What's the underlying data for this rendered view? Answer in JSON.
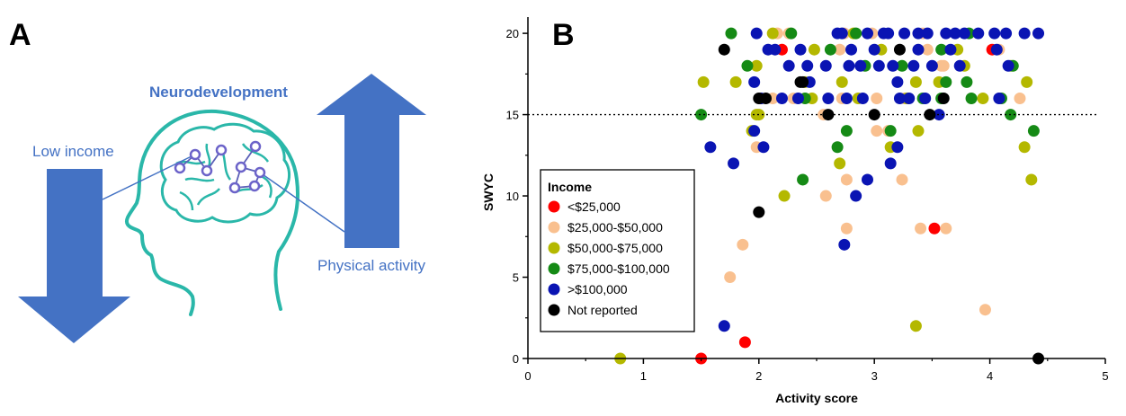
{
  "panel_a": {
    "letter": "A",
    "labels": {
      "neurodevelopment": "Neurodevelopment",
      "low_income": "Low income",
      "physical_activity": "Physical activity"
    },
    "colors": {
      "arrow": "#4472c4",
      "brain": "#2ab7a9",
      "node": "#7b6fd0"
    }
  },
  "panel_b": {
    "letter": "B"
  },
  "chart_data": {
    "type": "scatter",
    "xlabel": "Activity score",
    "ylabel": "SWYC",
    "xlim": [
      0,
      5
    ],
    "ylim": [
      0,
      21
    ],
    "xticks": [
      "0",
      "1",
      "2",
      "3",
      "4",
      "5"
    ],
    "yticks": [
      "0",
      "5",
      "10",
      "15",
      "20"
    ],
    "threshold_y": 15,
    "grid": false,
    "legend": {
      "title": "Income",
      "placement": "lower-left",
      "entries": [
        "<$25,000",
        "$25,000-$50,000",
        "$50,000-$75,000",
        "$75,000-$100,000",
        ">$100,000",
        "Not reported"
      ]
    },
    "series": [
      {
        "name": "<$25,000",
        "color": "#ff0000",
        "points": [
          [
            1.5,
            0
          ],
          [
            1.88,
            1
          ],
          [
            3.52,
            8
          ],
          [
            2.2,
            19
          ],
          [
            4.02,
            19
          ]
        ]
      },
      {
        "name": "$25,000-$50,000",
        "color": "#f9c08f",
        "points": [
          [
            1.75,
            5
          ],
          [
            1.86,
            7
          ],
          [
            2.58,
            10
          ],
          [
            2.76,
            11
          ],
          [
            2.76,
            8
          ],
          [
            3.24,
            11
          ],
          [
            3.4,
            8
          ],
          [
            3.62,
            8
          ],
          [
            3.96,
            3
          ],
          [
            1.98,
            13
          ],
          [
            3.02,
            14
          ],
          [
            3.12,
            14
          ],
          [
            2.3,
            16
          ],
          [
            2.56,
            15
          ],
          [
            2.72,
            16
          ],
          [
            3.02,
            16
          ],
          [
            3.26,
            16
          ],
          [
            3.6,
            18
          ],
          [
            4.26,
            16
          ],
          [
            2.12,
            16
          ],
          [
            2.16,
            20
          ],
          [
            2.26,
            20
          ],
          [
            2.7,
            19
          ],
          [
            2.98,
            20
          ],
          [
            3.42,
            20
          ],
          [
            3.58,
            18
          ],
          [
            4.08,
            19
          ],
          [
            2.74,
            20
          ],
          [
            3.46,
            19
          ]
        ]
      },
      {
        "name": "$50,000-$75,000",
        "color": "#b4b800",
        "points": [
          [
            0.8,
            0
          ],
          [
            3.36,
            2
          ],
          [
            2.22,
            10
          ],
          [
            2.7,
            12
          ],
          [
            3.38,
            14
          ],
          [
            3.14,
            13
          ],
          [
            4.3,
            13
          ],
          [
            4.36,
            11
          ],
          [
            1.98,
            15
          ],
          [
            2.0,
            15
          ],
          [
            1.94,
            14
          ],
          [
            1.98,
            18
          ],
          [
            1.8,
            17
          ],
          [
            1.52,
            17
          ],
          [
            2.12,
            20
          ],
          [
            2.4,
            17
          ],
          [
            2.46,
            16
          ],
          [
            2.72,
            17
          ],
          [
            2.82,
            20
          ],
          [
            2.86,
            16
          ],
          [
            3.06,
            19
          ],
          [
            3.36,
            17
          ],
          [
            3.56,
            17
          ],
          [
            3.72,
            19
          ],
          [
            3.78,
            18
          ],
          [
            3.94,
            16
          ],
          [
            4.32,
            17
          ],
          [
            4.18,
            18
          ],
          [
            2.48,
            19
          ],
          [
            3.28,
            16
          ]
        ]
      },
      {
        "name": "$75,000-$100,000",
        "color": "#158a15",
        "points": [
          [
            1.5,
            15
          ],
          [
            1.76,
            20
          ],
          [
            2.38,
            11
          ],
          [
            2.68,
            13
          ],
          [
            2.76,
            14
          ],
          [
            3.14,
            14
          ],
          [
            3.42,
            16
          ],
          [
            3.62,
            17
          ],
          [
            3.84,
            16
          ],
          [
            3.8,
            17
          ],
          [
            4.18,
            15
          ],
          [
            4.38,
            14
          ],
          [
            1.9,
            18
          ],
          [
            2.28,
            20
          ],
          [
            2.62,
            19
          ],
          [
            2.84,
            20
          ],
          [
            2.92,
            18
          ],
          [
            3.24,
            18
          ],
          [
            3.58,
            19
          ],
          [
            4.2,
            18
          ],
          [
            4.1,
            16
          ],
          [
            3.82,
            20
          ],
          [
            2.4,
            16
          ],
          [
            3.58,
            16
          ]
        ]
      },
      {
        "name": ">$100,000",
        "color": "#0a14b3",
        "points": [
          [
            1.58,
            13
          ],
          [
            1.7,
            2
          ],
          [
            1.78,
            12
          ],
          [
            1.96,
            14
          ],
          [
            2.04,
            13
          ],
          [
            2.74,
            7
          ],
          [
            2.84,
            10
          ],
          [
            2.94,
            11
          ],
          [
            3.14,
            12
          ],
          [
            3.2,
            13
          ],
          [
            1.96,
            17
          ],
          [
            2.02,
            16
          ],
          [
            2.2,
            16
          ],
          [
            2.26,
            18
          ],
          [
            2.34,
            16
          ],
          [
            2.42,
            18
          ],
          [
            2.44,
            17
          ],
          [
            2.6,
            16
          ],
          [
            2.76,
            16
          ],
          [
            2.8,
            19
          ],
          [
            2.88,
            18
          ],
          [
            2.9,
            16
          ],
          [
            3.0,
            19
          ],
          [
            3.04,
            18
          ],
          [
            3.08,
            20
          ],
          [
            3.16,
            18
          ],
          [
            3.2,
            17
          ],
          [
            3.22,
            16
          ],
          [
            3.26,
            20
          ],
          [
            3.3,
            16
          ],
          [
            3.34,
            18
          ],
          [
            3.38,
            19
          ],
          [
            3.44,
            16
          ],
          [
            3.5,
            18
          ],
          [
            3.56,
            15
          ],
          [
            3.62,
            20
          ],
          [
            3.66,
            19
          ],
          [
            3.74,
            18
          ],
          [
            3.78,
            20
          ],
          [
            3.9,
            20
          ],
          [
            4.04,
            20
          ],
          [
            4.14,
            20
          ],
          [
            4.3,
            20
          ],
          [
            4.42,
            20
          ],
          [
            1.98,
            20
          ],
          [
            2.08,
            19
          ],
          [
            2.36,
            19
          ],
          [
            2.58,
            18
          ],
          [
            2.68,
            20
          ],
          [
            2.78,
            18
          ],
          [
            2.94,
            20
          ],
          [
            3.12,
            20
          ],
          [
            3.46,
            20
          ],
          [
            3.7,
            20
          ],
          [
            4.06,
            19
          ],
          [
            4.16,
            18
          ],
          [
            4.08,
            16
          ],
          [
            2.14,
            19
          ],
          [
            2.72,
            20
          ],
          [
            3.38,
            20
          ]
        ]
      },
      {
        "name": "Not reported",
        "color": "#000000",
        "points": [
          [
            1.7,
            19
          ],
          [
            2.0,
            9
          ],
          [
            2.0,
            16
          ],
          [
            2.06,
            16
          ],
          [
            2.36,
            17
          ],
          [
            2.38,
            17
          ],
          [
            2.6,
            15
          ],
          [
            3.0,
            15
          ],
          [
            3.22,
            19
          ],
          [
            3.48,
            15
          ],
          [
            3.6,
            16
          ],
          [
            4.42,
            0
          ]
        ]
      }
    ]
  }
}
